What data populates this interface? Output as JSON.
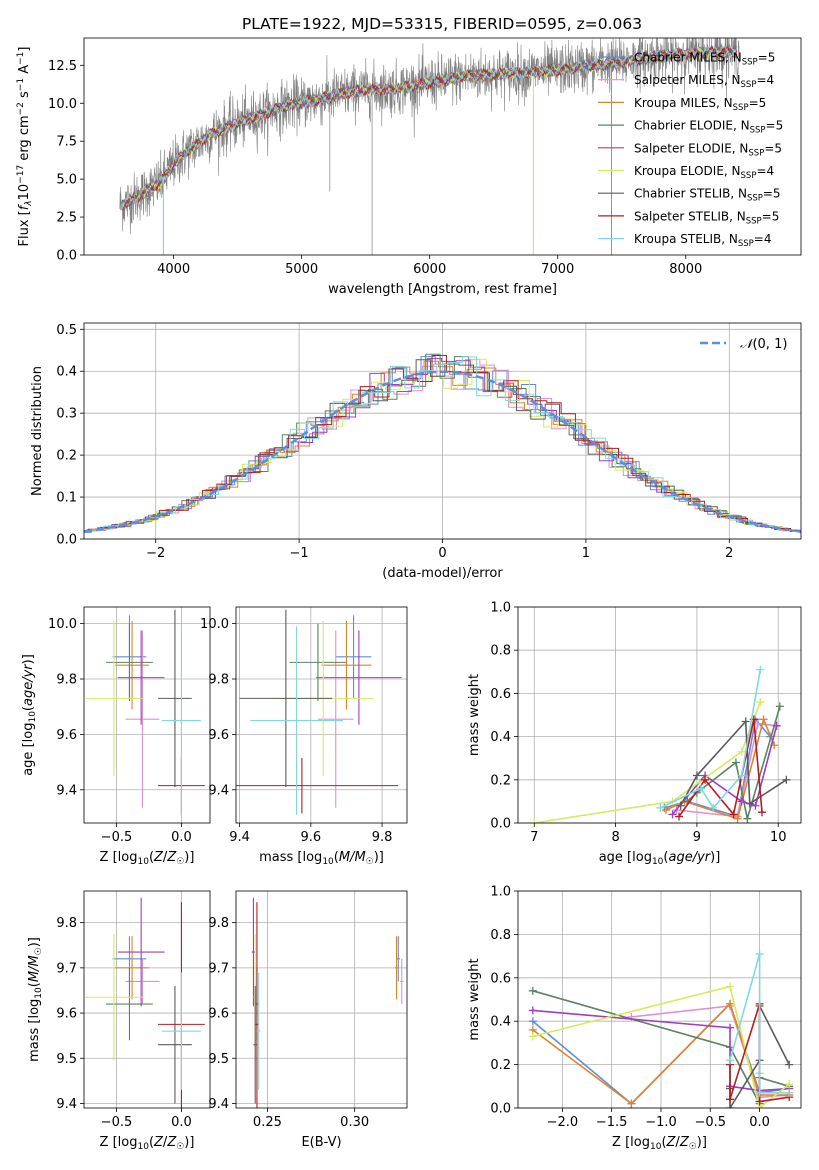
{
  "figure": {
    "title": "PLATE=1922, MJD=53315, FIBERID=0595, z=0.063"
  },
  "colors": {
    "Chabrier MILES": "#5b8de0",
    "Salpeter MILES": "#e08fd0",
    "Kroupa MILES": "#e0842c",
    "Chabrier ELODIE": "#5a8460",
    "Salpeter ELODIE": "#9f3cc4",
    "Kroupa ELODIE": "#d8ea5c",
    "Chabrier STELIB": "#5b5b5b",
    "Salpeter STELIB": "#b81c1c",
    "Kroupa STELIB": "#7fd9e0",
    "data": "#808080",
    "gaussian": "#5b8de0"
  },
  "chart_data": [
    {
      "id": "spectrum",
      "type": "line",
      "xlabel": "wavelength [Angstrom, rest frame]",
      "ylabel": "Flux [f_λ 10^-17 erg cm^-2 s^-1 A^-1]",
      "xlim": [
        3300,
        8900
      ],
      "ylim": [
        0,
        14.3
      ],
      "xticks": [
        "4000",
        "5000",
        "6000",
        "7000",
        "8000"
      ],
      "yticks": [
        "0.0",
        "2.5",
        "5.0",
        "7.5",
        "10.0",
        "12.5"
      ],
      "legend_position": "top-right",
      "legend": [
        {
          "name": "Chabrier MILES",
          "nssp": "5"
        },
        {
          "name": "Salpeter MILES",
          "nssp": "4"
        },
        {
          "name": "Kroupa MILES",
          "nssp": "5"
        },
        {
          "name": "Chabrier ELODIE",
          "nssp": "5"
        },
        {
          "name": "Salpeter ELODIE",
          "nssp": "5"
        },
        {
          "name": "Kroupa ELODIE",
          "nssp": "4"
        },
        {
          "name": "Chabrier STELIB",
          "nssp": "5"
        },
        {
          "name": "Salpeter STELIB",
          "nssp": "5"
        },
        {
          "name": "Kroupa STELIB",
          "nssp": "4"
        }
      ],
      "continuum": {
        "wavelength": [
          3600,
          3750,
          3900,
          4000,
          4100,
          4300,
          4500,
          4700,
          4900,
          5100,
          5300,
          5500,
          5700,
          5900,
          6100,
          6300,
          6500,
          6700,
          6900,
          7100,
          7300,
          7500,
          7700,
          7900,
          8100,
          8300
        ],
        "flux": [
          3.3,
          4.0,
          4.8,
          6.0,
          6.8,
          8.0,
          8.7,
          9.3,
          9.9,
          10.2,
          10.6,
          10.9,
          10.9,
          11.2,
          11.5,
          11.8,
          11.9,
          12.0,
          12.1,
          12.3,
          12.5,
          12.7,
          13.0,
          13.2,
          13.3,
          13.4
        ]
      },
      "spikes": [
        {
          "x": 3920,
          "y": 0.0
        },
        {
          "x": 5550,
          "y": 0.0
        },
        {
          "x": 6810,
          "y": 0.0
        },
        {
          "x": 7420,
          "y": 0.0
        },
        {
          "x": 5220,
          "y": 4.2
        }
      ]
    },
    {
      "id": "residuals",
      "type": "histogram",
      "xlabel": "(data-model)/error",
      "ylabel": "Normed distribution",
      "xlim": [
        -2.5,
        2.5
      ],
      "ylim": [
        0,
        0.515
      ],
      "xticks": [
        "−2",
        "−1",
        "0",
        "1",
        "2"
      ],
      "yticks": [
        "0.0",
        "0.1",
        "0.2",
        "0.3",
        "0.4",
        "0.5"
      ],
      "grid": true,
      "bin_width": 0.1,
      "legend_label": "N(0, 1)",
      "legend_position": "top-right"
    },
    {
      "id": "age_vs_Z",
      "type": "errorbar",
      "xlabel": "Z [log10(Z/Z☉)]",
      "ylabel": "age [log10(age/yr)]",
      "xlim": [
        -0.75,
        0.22
      ],
      "ylim": [
        9.28,
        10.06
      ],
      "xticks": [
        "−0.5",
        "0.0"
      ],
      "yticks": [
        "9.4",
        "9.6",
        "9.8",
        "10.0"
      ],
      "grid": true
    },
    {
      "id": "age_vs_mass",
      "type": "errorbar",
      "xlabel": "mass [log10(M/M☉)]",
      "ylabel": "",
      "xlim": [
        9.39,
        9.87
      ],
      "ylim": [
        9.28,
        10.06
      ],
      "xticks": [
        "9.4",
        "9.6",
        "9.8"
      ],
      "yticks": [
        "9.4",
        "9.6",
        "9.8",
        "10.0"
      ],
      "grid": true
    },
    {
      "id": "massweight_vs_age",
      "type": "line",
      "xlabel": "age [log10(age/yr)]",
      "ylabel": "mass weight",
      "xlim": [
        6.8,
        10.28
      ],
      "ylim": [
        0,
        1
      ],
      "xticks": [
        "7",
        "8",
        "9",
        "10"
      ],
      "yticks": [
        "0.0",
        "0.2",
        "0.4",
        "0.6",
        "0.8",
        "1.0"
      ],
      "grid": true,
      "series": [
        {
          "key": "Chabrier MILES",
          "x": [
            8.6,
            8.88,
            9.5,
            9.72,
            9.9
          ],
          "y": [
            0.07,
            0.1,
            0.03,
            0.48,
            0.4
          ]
        },
        {
          "key": "Salpeter MILES",
          "x": [
            8.75,
            9.5,
            9.75,
            9.98
          ],
          "y": [
            0.06,
            0.03,
            0.46,
            0.45
          ]
        },
        {
          "key": "Kroupa MILES",
          "x": [
            8.62,
            8.85,
            9.5,
            9.82,
            9.95
          ],
          "y": [
            0.06,
            0.1,
            0.02,
            0.48,
            0.36
          ]
        },
        {
          "key": "Chabrier ELODIE",
          "x": [
            8.88,
            9.0,
            9.48,
            9.62,
            10.02
          ],
          "y": [
            0.1,
            0.14,
            0.28,
            0.02,
            0.54
          ]
        },
        {
          "key": "Salpeter ELODIE",
          "x": [
            8.7,
            9.1,
            9.55,
            9.72,
            9.98
          ],
          "y": [
            0.04,
            0.22,
            0.1,
            0.08,
            0.45
          ]
        },
        {
          "key": "Kroupa ELODIE",
          "x": [
            7.0,
            8.7,
            9.55,
            9.78
          ],
          "y": [
            0.0,
            0.1,
            0.33,
            0.56
          ]
        },
        {
          "key": "Chabrier STELIB",
          "x": [
            8.8,
            9.0,
            9.6,
            9.65,
            10.1
          ],
          "y": [
            0.08,
            0.22,
            0.47,
            0.09,
            0.2
          ]
        },
        {
          "key": "Salpeter STELIB",
          "x": [
            8.78,
            9.1,
            9.45,
            9.7,
            9.8
          ],
          "y": [
            0.03,
            0.2,
            0.04,
            0.48,
            0.05
          ]
        },
        {
          "key": "Kroupa STELIB",
          "x": [
            8.55,
            9.05,
            9.2,
            9.55,
            9.78
          ],
          "y": [
            0.07,
            0.16,
            0.07,
            0.22,
            0.71
          ]
        }
      ]
    },
    {
      "id": "mass_vs_Z",
      "type": "errorbar",
      "xlabel": "Z [log10(Z/Z☉)]",
      "ylabel": "mass [log10(M/M☉)]",
      "xlim": [
        -0.75,
        0.22
      ],
      "ylim": [
        9.39,
        9.87
      ],
      "xticks": [
        "−0.5",
        "0.0"
      ],
      "yticks": [
        "9.4",
        "9.5",
        "9.6",
        "9.7",
        "9.8"
      ],
      "grid": true
    },
    {
      "id": "mass_vs_ebv",
      "type": "errorbar",
      "xlabel": "E(B-V)",
      "ylabel": "",
      "xlim": [
        0.232,
        0.33
      ],
      "ylim": [
        9.39,
        9.87
      ],
      "xticks": [
        "0.25",
        "0.30"
      ],
      "yticks": [
        "9.4",
        "9.5",
        "9.6",
        "9.7",
        "9.8"
      ],
      "grid": true
    },
    {
      "id": "massweight_vs_Z",
      "type": "line",
      "xlabel": "Z [log10(Z/Z☉)]",
      "ylabel": "mass weight",
      "xlim": [
        -2.45,
        0.42
      ],
      "ylim": [
        0,
        1
      ],
      "xticks": [
        "−2.0",
        "−1.5",
        "−1.0",
        "−0.5",
        "0.0"
      ],
      "yticks": [
        "0.0",
        "0.2",
        "0.4",
        "0.6",
        "0.8",
        "1.0"
      ],
      "grid": true,
      "series": [
        {
          "key": "Chabrier MILES",
          "x": [
            -2.3,
            -1.3,
            -0.3,
            0.0,
            0.3
          ],
          "y": [
            0.4,
            0.02,
            0.48,
            0.07,
            0.09
          ]
        },
        {
          "key": "Salpeter MILES",
          "x": [
            -1.3,
            -0.3,
            0.0,
            0.3
          ],
          "y": [
            0.42,
            0.47,
            0.05,
            0.06
          ]
        },
        {
          "key": "Kroupa MILES",
          "x": [
            -2.3,
            -1.3,
            -0.3,
            0.0,
            0.3
          ],
          "y": [
            0.36,
            0.02,
            0.48,
            0.06,
            0.06
          ]
        },
        {
          "key": "Chabrier ELODIE",
          "x": [
            -2.3,
            -0.3,
            0.0,
            0.0,
            0.3
          ],
          "y": [
            0.54,
            0.28,
            0.02,
            0.14,
            0.1
          ]
        },
        {
          "key": "Salpeter ELODIE",
          "x": [
            -2.3,
            -0.3,
            -0.3,
            0.0,
            0.3
          ],
          "y": [
            0.45,
            0.37,
            0.1,
            0.08,
            0.09
          ]
        },
        {
          "key": "Kroupa ELODIE",
          "x": [
            -2.3,
            -0.3,
            0.0,
            0.3
          ],
          "y": [
            0.33,
            0.56,
            0.0,
            0.11
          ]
        },
        {
          "key": "Chabrier STELIB",
          "x": [
            -0.3,
            -0.3,
            0.0,
            0.0,
            0.3
          ],
          "y": [
            0.09,
            0.0,
            0.22,
            0.47,
            0.2
          ]
        },
        {
          "key": "Salpeter STELIB",
          "x": [
            -0.3,
            -0.3,
            0.0,
            0.0,
            0.3
          ],
          "y": [
            0.2,
            0.04,
            0.48,
            0.03,
            0.05
          ]
        },
        {
          "key": "Kroupa STELIB",
          "x": [
            -0.3,
            0.0,
            0.0,
            0.0,
            0.3
          ],
          "y": [
            0.22,
            0.71,
            0.16,
            0.07,
            0.07
          ]
        }
      ]
    }
  ],
  "errorbars": [
    {
      "key": "Chabrier MILES",
      "Z": -0.4,
      "Zerr": 0.13,
      "age": 9.88,
      "ageerr": 0.15,
      "mass": 9.72,
      "masserr": 0.05,
      "ebv": 0.325,
      "ebverr": 0.001
    },
    {
      "key": "Salpeter MILES",
      "Z": -0.3,
      "Zerr": 0.13,
      "age": 9.655,
      "ageerr": 0.32,
      "mass": 9.67,
      "masserr": 0.05,
      "ebv": 0.327,
      "ebverr": 0.001
    },
    {
      "key": "Kroupa MILES",
      "Z": -0.38,
      "Zerr": 0.13,
      "age": 9.85,
      "ageerr": 0.16,
      "mass": 9.7,
      "masserr": 0.07,
      "ebv": 0.324,
      "ebverr": 0.001
    },
    {
      "key": "Chabrier ELODIE",
      "Z": -0.4,
      "Zerr": 0.18,
      "age": 9.86,
      "ageerr": 0.14,
      "mass": 9.62,
      "masserr": 0.08,
      "ebv": 0.244,
      "ebverr": 0.001
    },
    {
      "key": "Salpeter ELODIE",
      "Z": -0.31,
      "Zerr": 0.18,
      "age": 9.805,
      "ageerr": 0.17,
      "mass": 9.735,
      "masserr": 0.12,
      "ebv": 0.242,
      "ebverr": 0.001
    },
    {
      "key": "Kroupa ELODIE",
      "Z": -0.52,
      "Zerr": 0.22,
      "age": 9.73,
      "ageerr": 0.28,
      "mass": 9.635,
      "masserr": 0.14,
      "ebv": 0.243,
      "ebverr": 0.001
    },
    {
      "key": "Chabrier STELIB",
      "Z": -0.05,
      "Zerr": 0.13,
      "age": 9.73,
      "ageerr": 0.32,
      "mass": 9.53,
      "masserr": 0.13,
      "ebv": 0.243,
      "ebverr": 0.001
    },
    {
      "key": "Salpeter STELIB",
      "Z": 0.0,
      "Zerr": 0.18,
      "age": 9.415,
      "ageerr": 0.1,
      "mass": 9.575,
      "masserr": 0.27,
      "ebv": 0.244,
      "ebverr": 0.001
    },
    {
      "key": "Kroupa STELIB",
      "Z": 0.0,
      "Zerr": 0.15,
      "age": 9.65,
      "ageerr": 0.34,
      "mass": 9.56,
      "masserr": 0.13,
      "ebv": 0.245,
      "ebverr": 0.001
    }
  ]
}
